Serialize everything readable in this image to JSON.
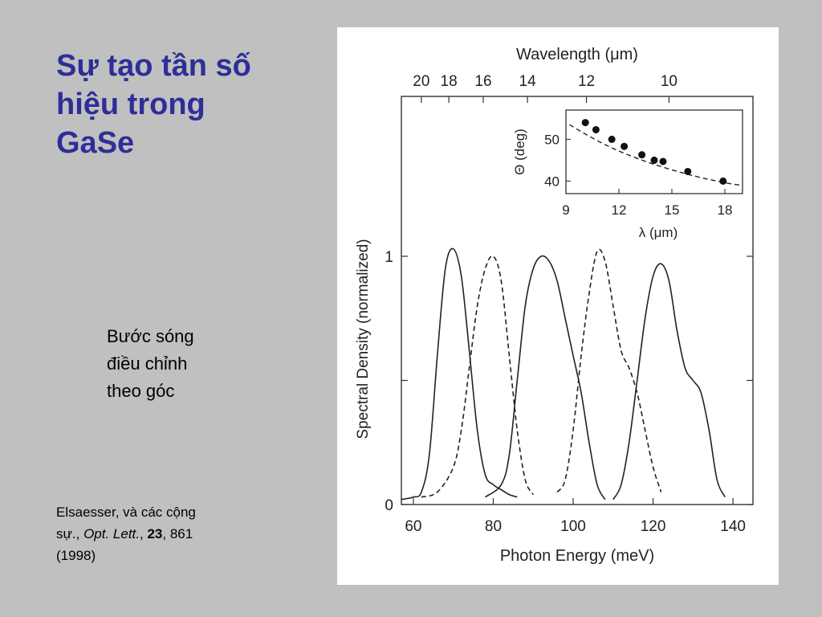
{
  "slide": {
    "title_lines": [
      "Sự tạo tần số",
      "hiệu trong",
      "GaSe"
    ],
    "caption_lines": [
      "Bước sóng",
      "điều chỉnh",
      "theo góc"
    ],
    "citation": {
      "authors": "Elsaesser, và các cộng",
      "authors_cont": "sự.,",
      "journal": "Opt. Lett.",
      "comma1": ",",
      "volume": "23",
      "pages": ", 861",
      "year": "(1998)"
    },
    "title_color": "#2e2e9a",
    "background_color": "#c0c0c0"
  },
  "chart_data": [
    {
      "type": "line",
      "xlabel": "Photon Energy (meV)",
      "ylabel": "Spectral Density (normalized)",
      "xlim": [
        57,
        145
      ],
      "ylim": [
        0,
        1
      ],
      "xticks": [
        60,
        80,
        100,
        120,
        140
      ],
      "yticks": [
        0,
        1
      ],
      "yticks_unlabeled": [
        0.5
      ],
      "secondary_xaxis": {
        "label": "Wavelength (μm)",
        "ticks": [
          "20",
          "18",
          "16",
          "14",
          "12",
          "10"
        ],
        "tick_values_um": [
          20,
          18,
          16,
          14,
          12,
          10
        ]
      },
      "grid": false,
      "series": [
        {
          "style": "solid",
          "x": [
            57,
            60,
            62,
            64,
            66,
            68,
            70,
            72,
            74,
            76,
            78,
            80,
            82,
            84,
            86
          ],
          "y": [
            0.02,
            0.03,
            0.05,
            0.2,
            0.6,
            0.95,
            1.03,
            0.92,
            0.62,
            0.3,
            0.12,
            0.08,
            0.06,
            0.04,
            0.03
          ]
        },
        {
          "style": "dashed",
          "x": [
            62,
            66,
            70,
            72,
            74,
            76,
            78,
            80,
            82,
            84,
            86,
            88,
            90
          ],
          "y": [
            0.03,
            0.05,
            0.15,
            0.3,
            0.55,
            0.8,
            0.95,
            1.0,
            0.9,
            0.6,
            0.3,
            0.1,
            0.04
          ]
        },
        {
          "style": "solid",
          "x": [
            78,
            82,
            84,
            86,
            88,
            90,
            92,
            94,
            96,
            98,
            100,
            102,
            104,
            106,
            108
          ],
          "y": [
            0.03,
            0.08,
            0.2,
            0.5,
            0.8,
            0.95,
            1.0,
            0.98,
            0.9,
            0.75,
            0.6,
            0.45,
            0.25,
            0.08,
            0.02
          ]
        },
        {
          "style": "dashed",
          "x": [
            96,
            98,
            100,
            102,
            104,
            106,
            108,
            110,
            112,
            114,
            116,
            118,
            120,
            122
          ],
          "y": [
            0.05,
            0.1,
            0.3,
            0.6,
            0.85,
            1.02,
            0.98,
            0.8,
            0.62,
            0.55,
            0.45,
            0.3,
            0.15,
            0.05
          ]
        },
        {
          "style": "solid",
          "x": [
            110,
            112,
            114,
            116,
            118,
            120,
            122,
            124,
            126,
            128,
            130,
            132,
            134,
            136,
            138
          ],
          "y": [
            0.02,
            0.08,
            0.25,
            0.5,
            0.75,
            0.92,
            0.97,
            0.9,
            0.7,
            0.55,
            0.5,
            0.45,
            0.3,
            0.1,
            0.03
          ]
        }
      ]
    },
    {
      "type": "scatter",
      "xlabel": "λ (μm)",
      "ylabel": "Θ (deg)",
      "xlim": [
        9,
        19
      ],
      "ylim": [
        37,
        57
      ],
      "xticks": [
        9,
        12,
        15,
        18
      ],
      "yticks": [
        40,
        50
      ],
      "points": {
        "x": [
          10.1,
          10.7,
          11.6,
          12.3,
          13.3,
          14.0,
          14.5,
          15.9,
          17.9
        ],
        "y": [
          54.0,
          52.3,
          50.0,
          48.3,
          46.3,
          45.0,
          44.7,
          42.3,
          40.0
        ]
      },
      "fit": {
        "style": "dashed",
        "x": [
          9.2,
          10,
          11,
          12,
          13,
          14,
          15,
          16,
          17,
          18,
          18.9
        ],
        "y": [
          53.5,
          51.5,
          49.2,
          47.2,
          45.5,
          44.0,
          42.7,
          41.5,
          40.5,
          39.6,
          39.0
        ]
      }
    }
  ]
}
